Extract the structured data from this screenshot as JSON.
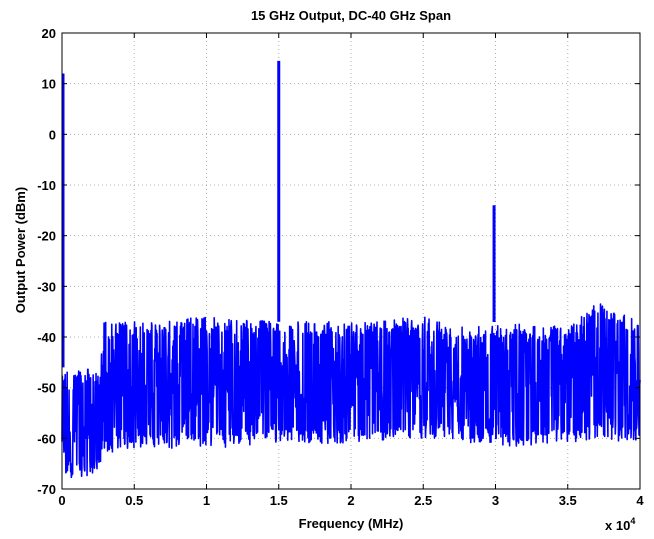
{
  "chart_data": {
    "type": "line",
    "title": "15 GHz Output, DC-40 GHz Span",
    "xlabel": "Frequency (MHz)",
    "ylabel": "Output Power (dBm)",
    "x_exponent_label": "x 10",
    "x_exponent_power": "4",
    "xlim": [
      0,
      4
    ],
    "ylim": [
      -70,
      20
    ],
    "grid": true,
    "legend": "none",
    "series_color": "#0000ff",
    "x_ticks": [
      0,
      0.5,
      1,
      1.5,
      2,
      2.5,
      3,
      3.5,
      4
    ],
    "x_tick_labels": [
      "0",
      "0.5",
      "1",
      "1.5",
      "2",
      "2.5",
      "3",
      "3.5",
      "4"
    ],
    "y_ticks": [
      20,
      10,
      0,
      -10,
      -20,
      -30,
      -40,
      -50,
      -60,
      -70
    ],
    "y_tick_labels": [
      "20",
      "10",
      "0",
      "-10",
      "-20",
      "-30",
      "-40",
      "-50",
      "-60",
      "-70"
    ],
    "series": [
      {
        "noise_envelope": {
          "x": [
            0,
            0.27,
            0.28,
            0.5,
            1.0,
            1.5,
            2.0,
            2.5,
            2.8,
            3.0,
            3.5,
            3.7,
            4.0
          ],
          "upper": [
            -46,
            -46,
            -37,
            -37,
            -36,
            -37,
            -37,
            -36,
            -38,
            -37,
            -38,
            -33,
            -37
          ],
          "lower": [
            -68,
            -67,
            -63,
            -62,
            -62,
            -61,
            -61,
            -60,
            -61,
            -62,
            -61,
            -60,
            -61
          ]
        },
        "peaks": [
          {
            "x": 0,
            "y": 12
          },
          {
            "x": 1.5,
            "y": 14.5
          },
          {
            "x": 2.99,
            "y": -14
          }
        ]
      }
    ]
  }
}
